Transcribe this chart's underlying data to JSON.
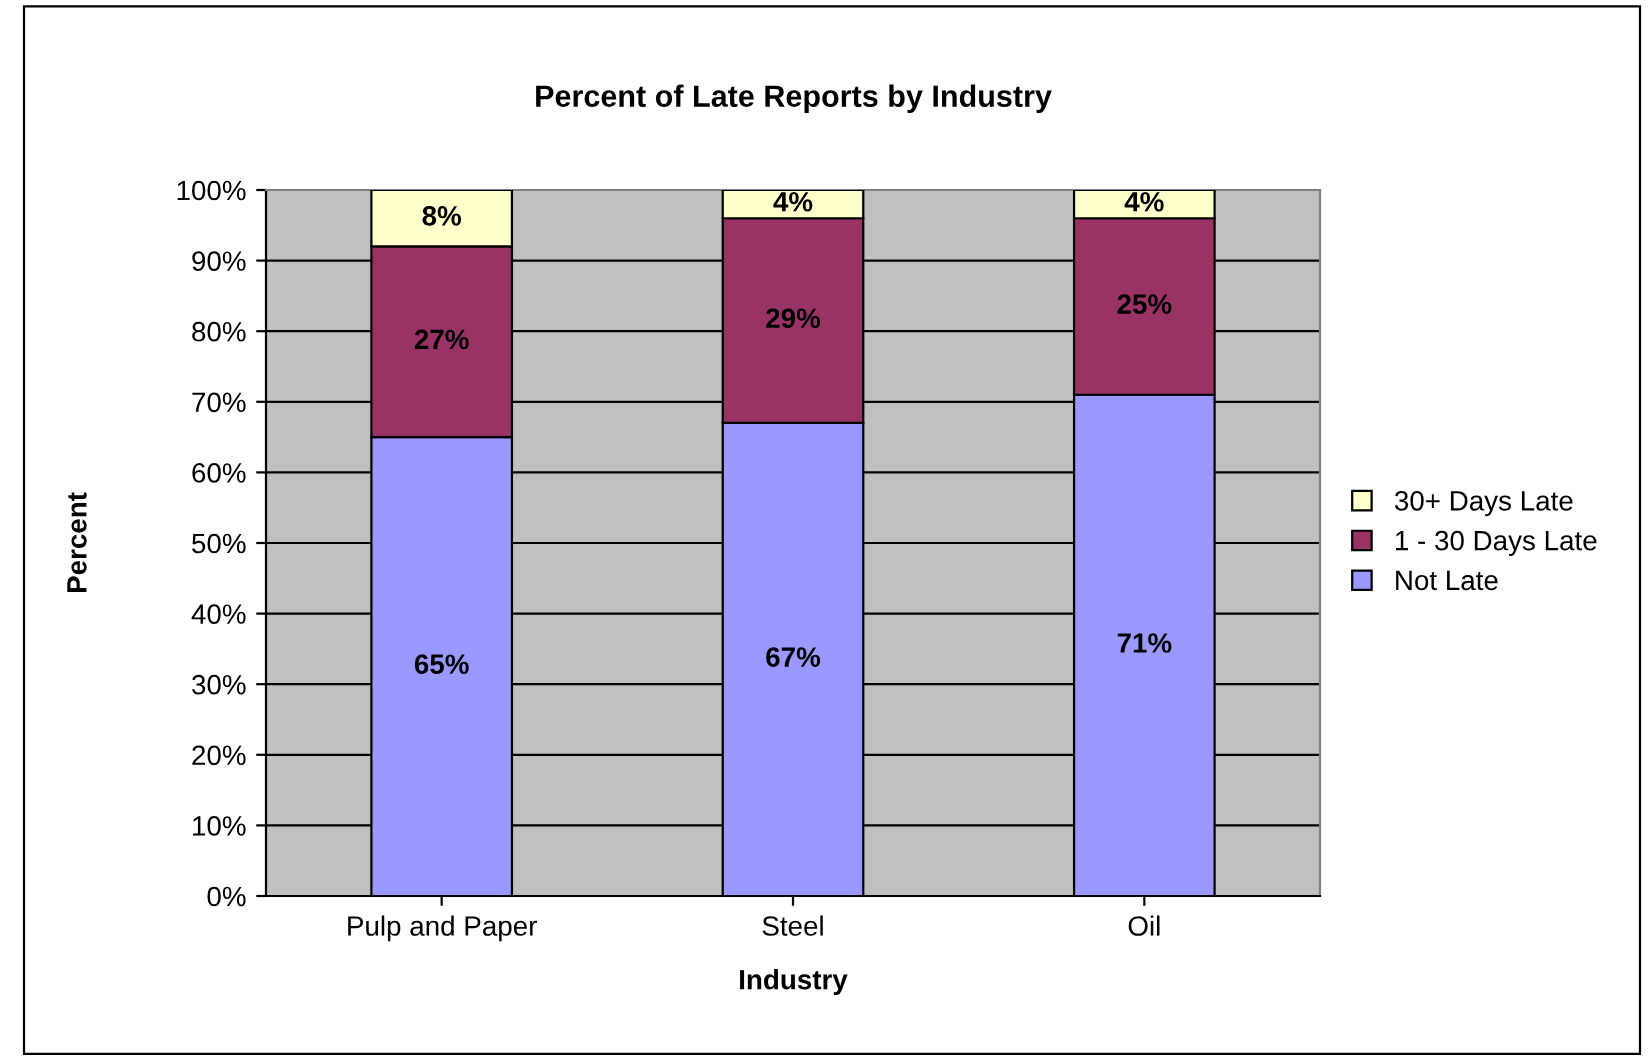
{
  "chart_data": {
    "type": "bar",
    "title": "Percent of Late Reports by Industry",
    "xlabel": "Industry",
    "ylabel": "Percent",
    "categories": [
      "Pulp and Paper",
      "Steel",
      "Oil"
    ],
    "stacked": true,
    "series": [
      {
        "name": "Not Late",
        "color": "#9999ff",
        "values": [
          65,
          67,
          71
        ],
        "value_labels": [
          "65%",
          "67%",
          "71%"
        ]
      },
      {
        "name": "1 - 30 Days Late",
        "color": "#993366",
        "values": [
          27,
          29,
          25
        ],
        "value_labels": [
          "27%",
          "29%",
          "25%"
        ]
      },
      {
        "name": "30+ Days Late",
        "color": "#ffffcc",
        "values": [
          8,
          4,
          4
        ],
        "value_labels": [
          "8%",
          "4%",
          "4%"
        ]
      }
    ],
    "ylim": [
      0,
      100
    ],
    "yticks": [
      {
        "value": 0,
        "label": "0%"
      },
      {
        "value": 10,
        "label": "10%"
      },
      {
        "value": 20,
        "label": "20%"
      },
      {
        "value": 30,
        "label": "30%"
      },
      {
        "value": 40,
        "label": "40%"
      },
      {
        "value": 50,
        "label": "50%"
      },
      {
        "value": 60,
        "label": "60%"
      },
      {
        "value": 70,
        "label": "70%"
      },
      {
        "value": 80,
        "label": "80%"
      },
      {
        "value": 90,
        "label": "90%"
      },
      {
        "value": 100,
        "label": "100%"
      }
    ],
    "grid": "y",
    "legend": "right"
  }
}
